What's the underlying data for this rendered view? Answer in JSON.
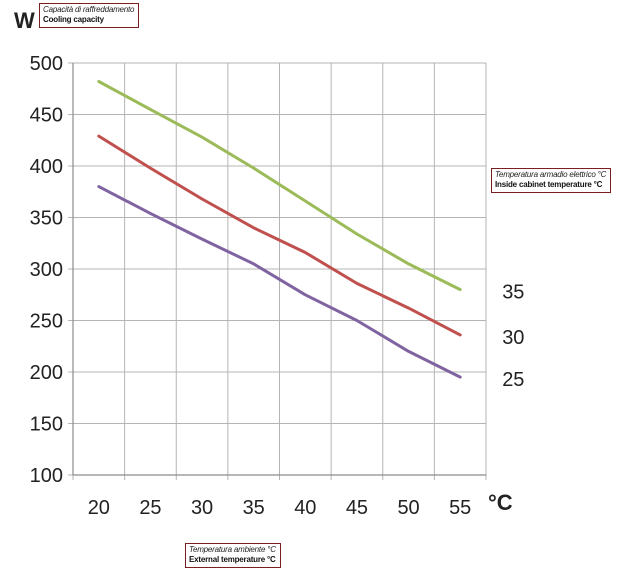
{
  "chart_data": {
    "type": "line",
    "y_unit": "W",
    "x_unit": "°C",
    "ylabel_it": "Capacità di raffreddamento",
    "ylabel_en": "Cooling capacity",
    "xlabel_it": "Temperatura ambiente °C",
    "xlabel_en": "External temperature °C",
    "legend_title_it": "Temperatura armadio elettrico °C",
    "legend_title_en": "Inside cabinet temperature °C",
    "x_ticks": [
      "20",
      "25",
      "30",
      "35",
      "40",
      "45",
      "50",
      "55"
    ],
    "y_ticks": [
      "100",
      "150",
      "200",
      "250",
      "300",
      "350",
      "400",
      "450",
      "500"
    ],
    "xlim": [
      17.5,
      57.5
    ],
    "ylim": [
      100,
      500
    ],
    "grid": true,
    "series": [
      {
        "name": "35",
        "color": "#9bbb59",
        "x": [
          20,
          25,
          30,
          35,
          40,
          45,
          50,
          55
        ],
        "y": [
          482,
          455,
          428,
          398,
          366,
          334,
          305,
          280
        ]
      },
      {
        "name": "30",
        "color": "#c0504d",
        "x": [
          20,
          25,
          30,
          35,
          40,
          45,
          50,
          55
        ],
        "y": [
          429,
          398,
          368,
          340,
          316,
          286,
          262,
          236
        ]
      },
      {
        "name": "25",
        "color": "#8064a2",
        "x": [
          20,
          25,
          30,
          35,
          40,
          45,
          50,
          55
        ],
        "y": [
          380,
          354,
          329,
          305,
          275,
          250,
          220,
          195
        ]
      }
    ]
  }
}
